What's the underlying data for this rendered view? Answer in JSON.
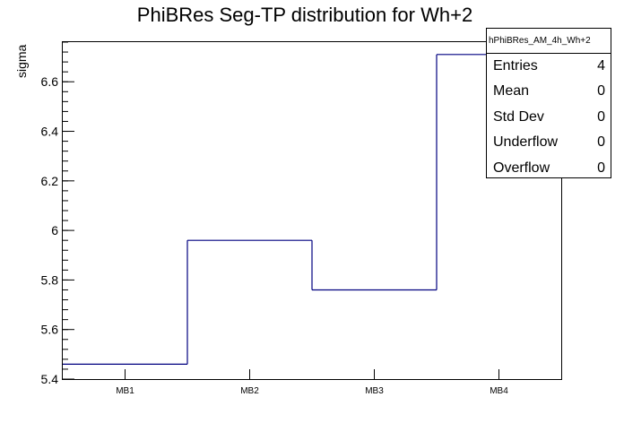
{
  "chart_data": {
    "type": "bar",
    "style": "step-histogram",
    "title": "PhiBRes Seg-TP distribution for Wh+2",
    "xlabel": "",
    "ylabel": "sigma",
    "categories": [
      "MB1",
      "MB2",
      "MB3",
      "MB4"
    ],
    "values": [
      5.46,
      5.96,
      5.76,
      6.71
    ],
    "ylim": [
      5.4,
      6.76
    ],
    "yticks": [
      5.4,
      5.6,
      5.8,
      6,
      6.2,
      6.4,
      6.6
    ],
    "ytick_labels": [
      "5.4",
      "5.6",
      "5.8",
      "6",
      "6.2",
      "6.4",
      "6.6"
    ],
    "line_color": "#000080",
    "grid": false
  },
  "stats_box": {
    "name": "hPhiBRes_AM_4h_Wh+2",
    "rows": [
      {
        "label": "Entries",
        "value": "4"
      },
      {
        "label": "Mean",
        "value": "0"
      },
      {
        "label": "Std Dev",
        "value": "0"
      },
      {
        "label": "Underflow",
        "value": "0"
      },
      {
        "label": "Overflow",
        "value": "0"
      }
    ]
  }
}
